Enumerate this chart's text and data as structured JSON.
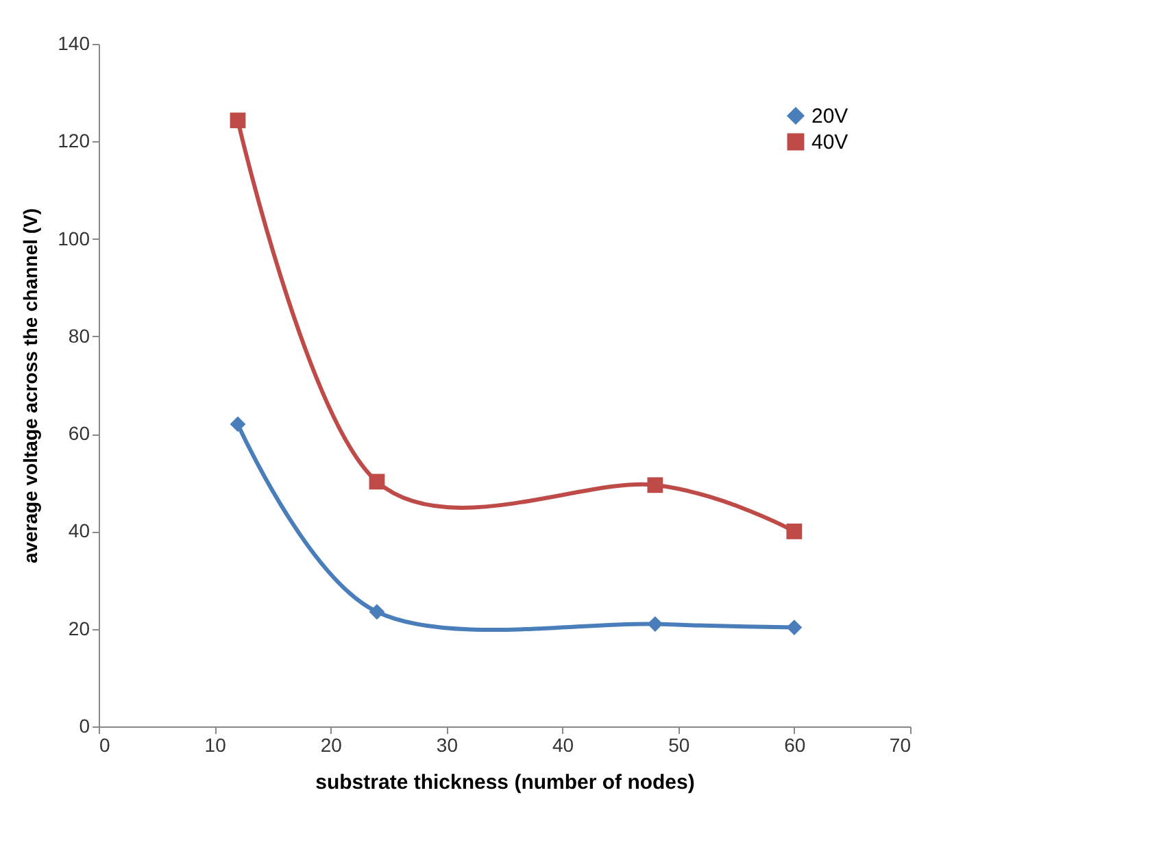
{
  "chart_data": {
    "type": "line",
    "xlabel": "substrate thickness (number of nodes)",
    "ylabel": "average voltage across the channel (V)",
    "x": [
      12,
      24,
      48,
      60
    ],
    "series": [
      {
        "name": "20V",
        "color": "#4a7ebb",
        "values": [
          62,
          23.5,
          21,
          20.3
        ],
        "marker": "diamond"
      },
      {
        "name": "40V",
        "color": "#be4b48",
        "values": [
          124.3,
          50.2,
          49.5,
          40
        ],
        "marker": "square"
      }
    ],
    "xlim": [
      0,
      70
    ],
    "xticks": [
      0,
      10,
      20,
      30,
      40,
      50,
      60,
      70
    ],
    "ylim": [
      0,
      140
    ],
    "yticks": [
      0,
      20,
      40,
      60,
      80,
      100,
      120,
      140
    ],
    "grid": false,
    "legend": "top right",
    "line_style": "solid"
  }
}
